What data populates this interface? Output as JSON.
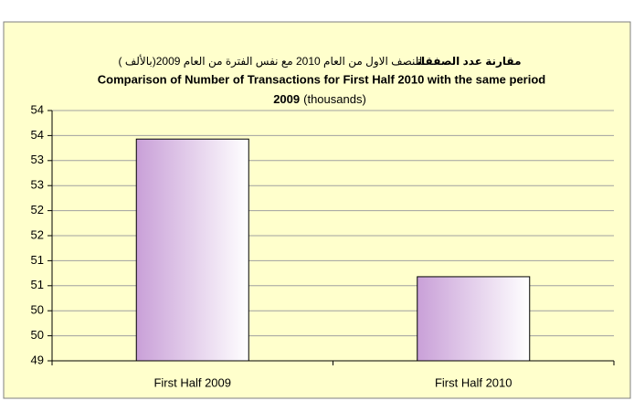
{
  "chart_data": {
    "type": "bar",
    "title_arabic_bold": "مقارنة عدد الصفقات",
    "title_arabic": "للنصف الاول من العام 2010 مع نفس الفترة من العام 2009(بالألف )",
    "title": "Comparison of  Number of Transactions for First Half 2010 with  the  same period",
    "title_year": "2009",
    "title_unit": "(thousands)",
    "categories": [
      "First Half 2009",
      "First Half  2010"
    ],
    "values": [
      53.43,
      50.68
    ],
    "color": "#c9a0d8",
    "ylim": [
      49,
      54
    ],
    "yticks": [
      49,
      {
        "value": 49.5,
        "label": "50"
      },
      50,
      {
        "value": 50.5,
        "label": "51"
      },
      51,
      {
        "value": 51.5,
        "label": "52"
      },
      52,
      {
        "value": 52.5,
        "label": "53"
      },
      53,
      {
        "value": 53.5,
        "label": "54"
      },
      54
    ],
    "grid": true
  }
}
